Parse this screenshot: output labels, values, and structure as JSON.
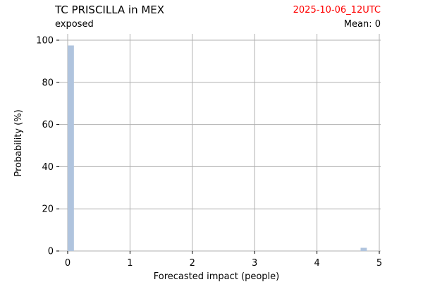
{
  "header": {
    "title": "TC PRISCILLA in MEX",
    "subtitle": "exposed",
    "date": "2025-10-06_12UTC",
    "date_color": "#ff0000",
    "mean_text": "Mean: 0"
  },
  "chart_data": {
    "type": "bar",
    "title": "TC PRISCILLA in MEX",
    "xlabel": "Forecasted impact (people)",
    "ylabel": "Probability (%)",
    "xlim": [
      -0.15,
      5.0
    ],
    "ylim": [
      0,
      100
    ],
    "xticks": [
      0,
      1,
      2,
      3,
      4,
      5
    ],
    "yticks": [
      0,
      20,
      40,
      60,
      80,
      100
    ],
    "grid": true,
    "bar_color": "#b0c4de",
    "bars": [
      {
        "x0": 0.0,
        "x1": 0.1,
        "value": 97.5
      },
      {
        "x0": 4.7,
        "x1": 4.8,
        "value": 1.5
      }
    ]
  }
}
